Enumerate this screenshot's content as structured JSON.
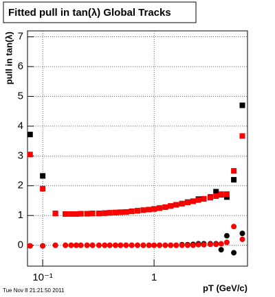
{
  "chart_data": {
    "type": "scatter",
    "title": "Fitted pull in tan(λ)  Global Tracks",
    "y_label": "pull in tan(λ)",
    "x_label": "pT (GeV/c)",
    "footer": "Tue Nov  8 21:21:50 2011",
    "log_x": true,
    "grid": true,
    "xlim": [
      0.073,
      6.9
    ],
    "ylim": [
      -0.7,
      7.2
    ],
    "xticks": [
      {
        "value": 0.1,
        "label": "10⁻¹"
      },
      1
    ],
    "yticks": [
      0,
      1,
      2,
      3,
      4,
      5,
      6,
      7
    ],
    "x": [
      0.077,
      0.1,
      0.13,
      0.16,
      0.18,
      0.2,
      0.22,
      0.25,
      0.28,
      0.32,
      0.36,
      0.4,
      0.45,
      0.5,
      0.56,
      0.63,
      0.71,
      0.8,
      0.9,
      1.0,
      1.12,
      1.26,
      1.41,
      1.58,
      1.78,
      2.0,
      2.24,
      2.5,
      2.8,
      3.2,
      3.6,
      4.0,
      4.5,
      5.2,
      6.2
    ],
    "series": [
      {
        "color": "#000000",
        "marker": "square",
        "values": [
          3.72,
          2.33,
          1.07,
          1.05,
          1.05,
          1.05,
          1.06,
          1.06,
          1.07,
          1.07,
          1.08,
          1.09,
          1.1,
          1.11,
          1.12,
          1.14,
          1.16,
          1.18,
          1.2,
          1.22,
          1.25,
          1.28,
          1.32,
          1.36,
          1.4,
          1.45,
          1.48,
          1.55,
          1.56,
          1.62,
          1.8,
          1.7,
          1.62,
          2.2,
          4.7
        ]
      },
      {
        "color": "#ff0000",
        "marker": "square",
        "values": [
          3.05,
          1.9,
          1.07,
          1.05,
          1.05,
          1.05,
          1.06,
          1.06,
          1.07,
          1.07,
          1.08,
          1.09,
          1.1,
          1.11,
          1.12,
          1.14,
          1.16,
          1.18,
          1.2,
          1.22,
          1.25,
          1.28,
          1.32,
          1.36,
          1.4,
          1.44,
          1.48,
          1.52,
          1.56,
          1.6,
          1.65,
          1.72,
          1.72,
          2.5,
          3.67
        ]
      },
      {
        "color": "#000000",
        "marker": "circle",
        "values": [
          -0.02,
          -0.02,
          0.0,
          0.0,
          0.0,
          0.0,
          0.0,
          0.0,
          0.0,
          0.0,
          0.0,
          0.0,
          0.0,
          0.0,
          0.0,
          0.0,
          0.0,
          0.0,
          0.0,
          0.0,
          0.0,
          0.0,
          0.0,
          0.0,
          0.02,
          0.02,
          0.03,
          0.05,
          0.05,
          0.05,
          0.05,
          -0.15,
          0.32,
          -0.25,
          0.4
        ]
      },
      {
        "color": "#ff0000",
        "marker": "circle",
        "values": [
          -0.02,
          -0.02,
          0.0,
          0.0,
          0.0,
          0.0,
          0.0,
          0.0,
          0.0,
          0.0,
          0.0,
          0.0,
          0.0,
          0.0,
          0.0,
          0.0,
          0.0,
          0.0,
          0.0,
          0.0,
          0.0,
          0.0,
          0.0,
          0.0,
          0.0,
          0.0,
          0.0,
          0.02,
          0.02,
          0.03,
          0.03,
          0.05,
          0.1,
          0.63,
          0.2
        ]
      }
    ]
  }
}
